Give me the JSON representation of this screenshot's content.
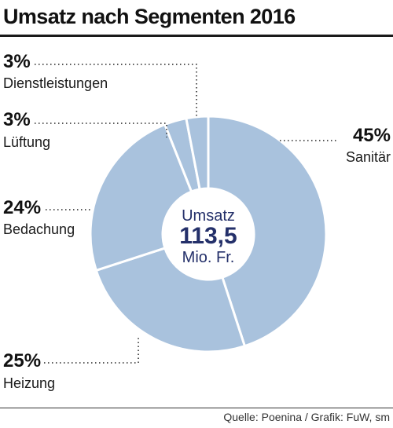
{
  "title": "Umsatz nach Segmenten 2016",
  "source": "Quelle: Poenina / Grafik: FuW, sm",
  "colors": {
    "slice": "#a9c2dd",
    "separator": "#ffffff",
    "center_text": "#24306a"
  },
  "chart_data": {
    "type": "pie",
    "title": "Umsatz nach Segmenten 2016",
    "center": {
      "label": "Umsatz",
      "value": "113,5",
      "unit": "Mio. Fr."
    },
    "categories": [
      "Sanitär",
      "Heizung",
      "Bedachung",
      "Lüftung",
      "Dienstleistungen"
    ],
    "values": [
      45,
      25,
      24,
      3,
      3
    ],
    "labels": [
      "45%",
      "25%",
      "24%",
      "3%",
      "3%"
    ]
  }
}
